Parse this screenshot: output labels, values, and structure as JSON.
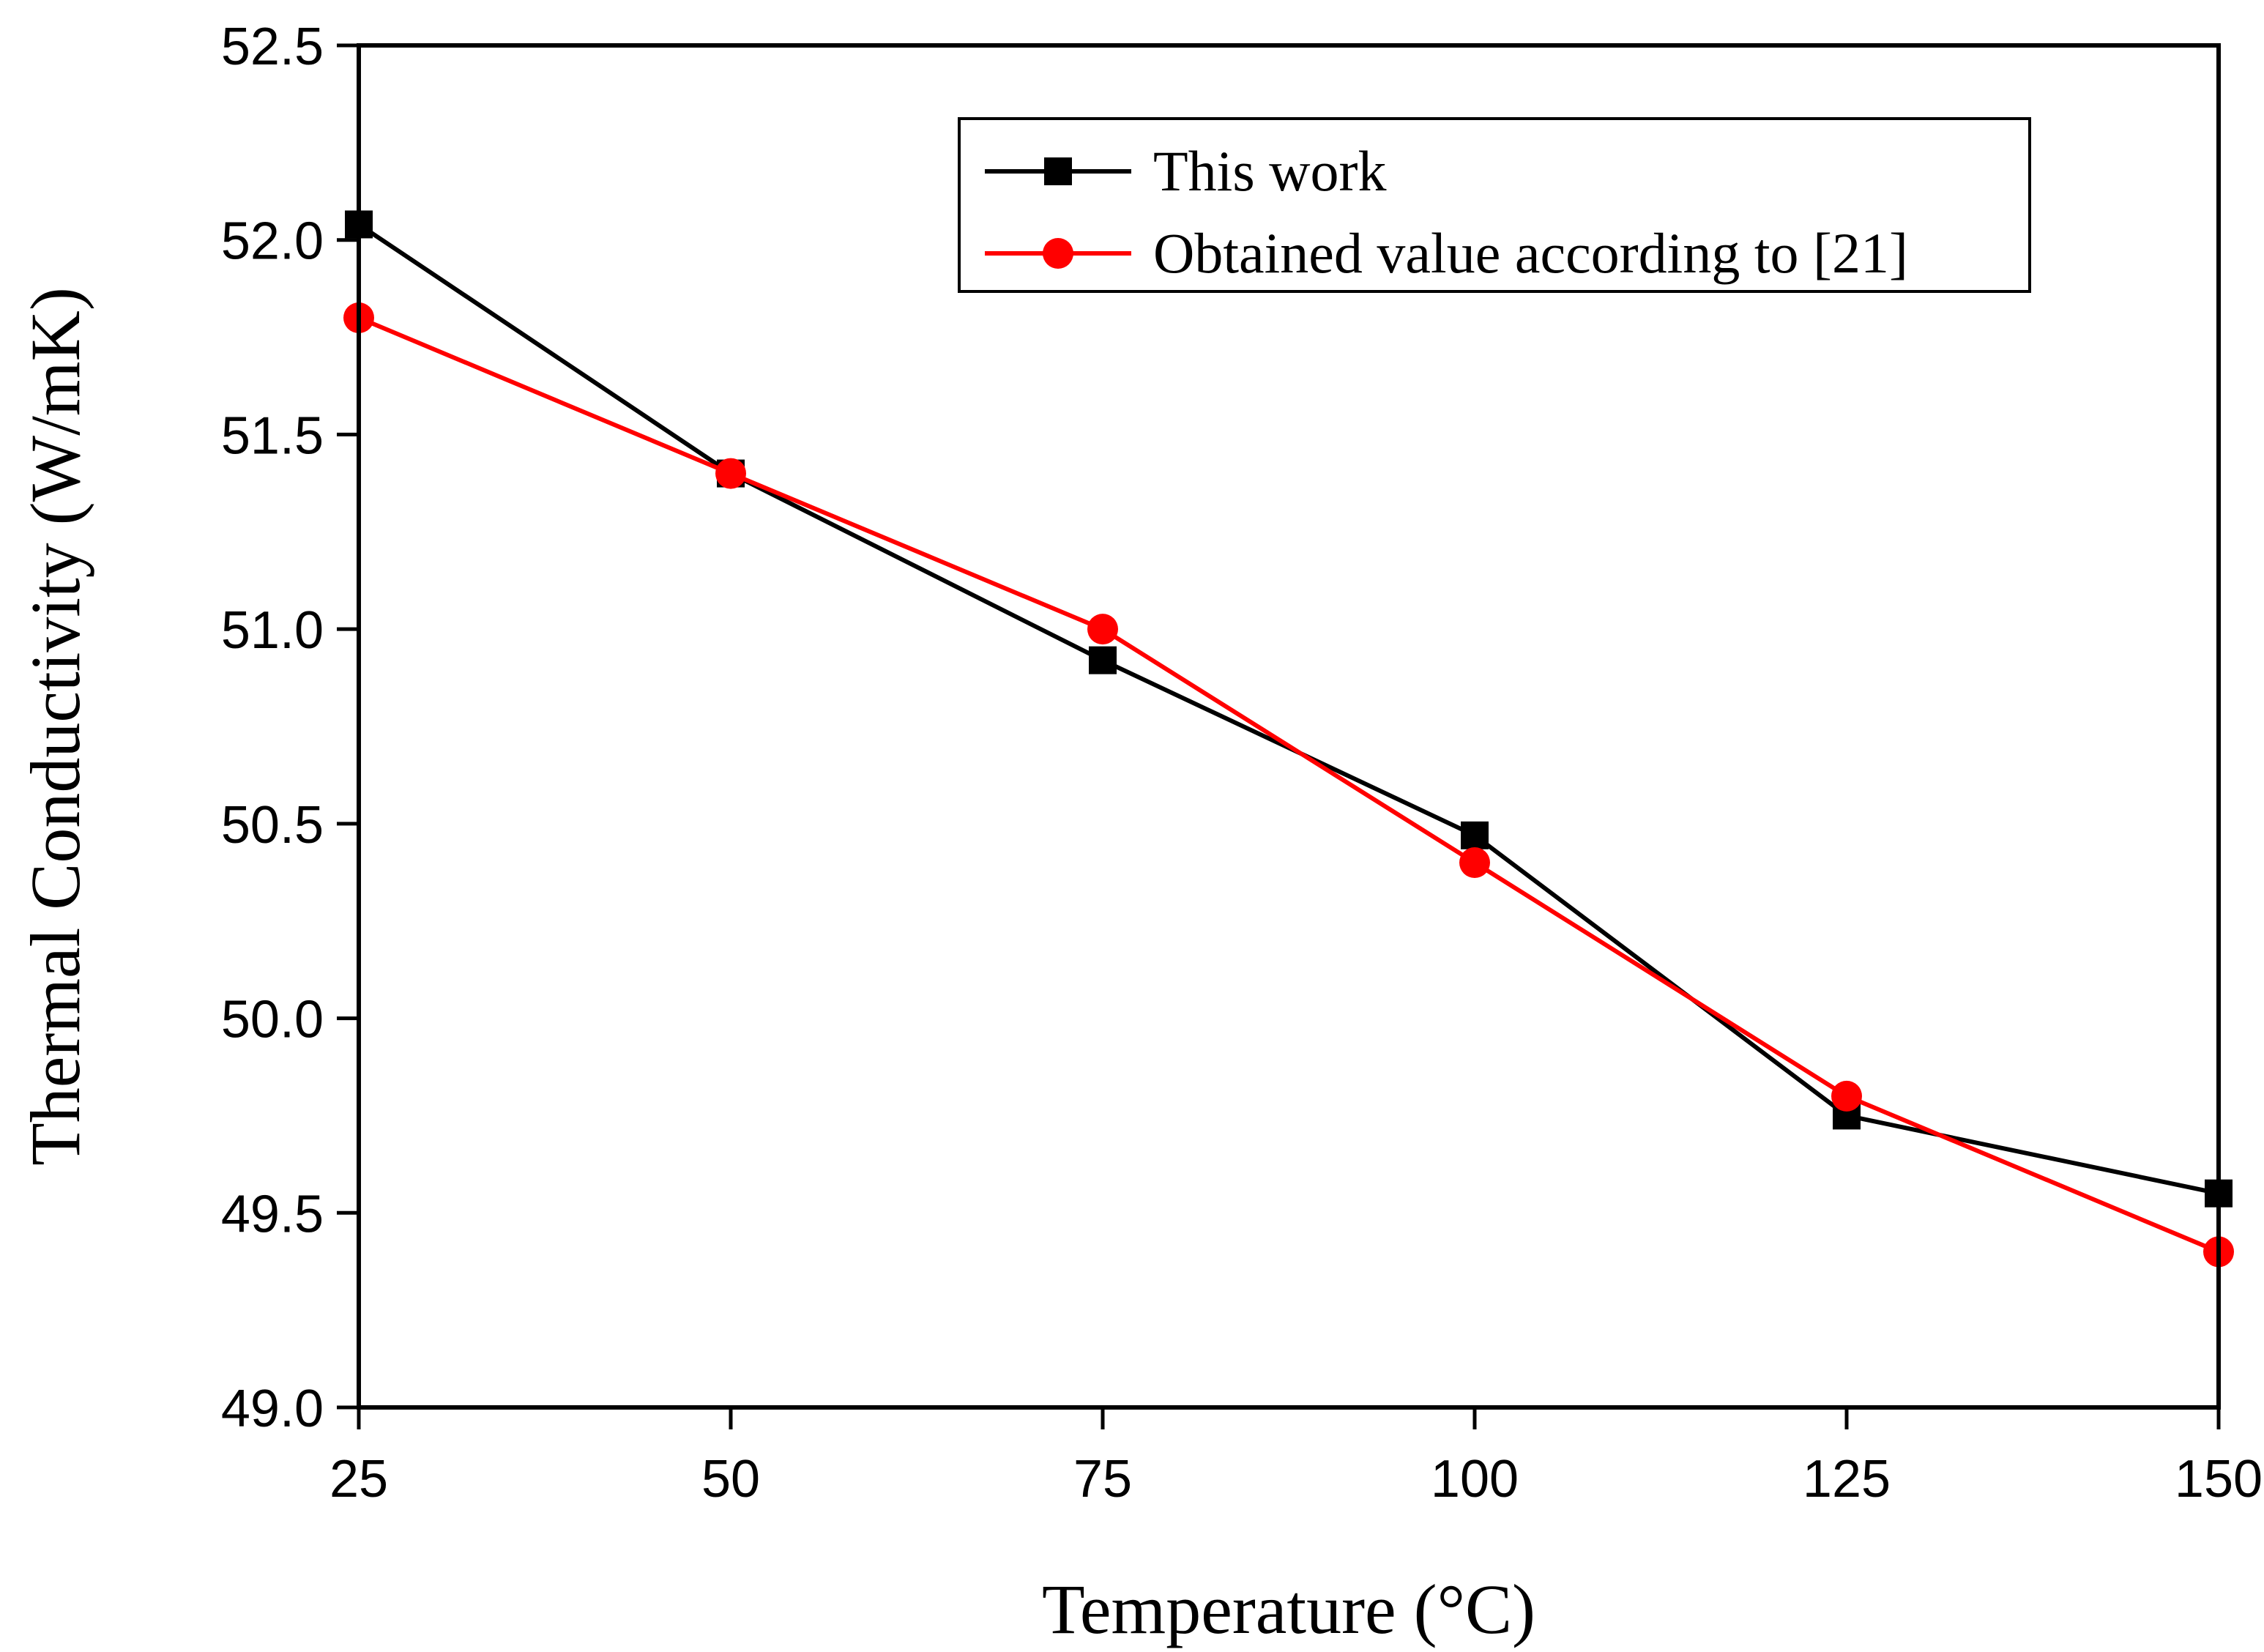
{
  "chart_data": {
    "type": "line",
    "title": "",
    "xlabel": "Temperature (°C)",
    "ylabel": "Thermal Conductivity (W/mK)",
    "xlim": [
      25,
      150
    ],
    "ylim": [
      49.0,
      52.5
    ],
    "x_ticks": [
      25,
      50,
      75,
      100,
      125,
      150
    ],
    "x_tick_labels": [
      "25",
      "50",
      "75",
      "100",
      "125",
      "150"
    ],
    "y_ticks": [
      49.0,
      49.5,
      50.0,
      50.5,
      51.0,
      51.5,
      52.0,
      52.5
    ],
    "y_tick_labels": [
      "49.0",
      "49.5",
      "50.0",
      "50.5",
      "51.0",
      "51.5",
      "52.0",
      "52.5"
    ],
    "grid": false,
    "legend_position": "top-right",
    "x": [
      25,
      50,
      75,
      100,
      125,
      150
    ],
    "series": [
      {
        "name": "This work",
        "color": "#000000",
        "marker": "square",
        "values": [
          52.04,
          51.4,
          50.92,
          50.47,
          49.75,
          49.55
        ]
      },
      {
        "name": "Obtained value according to [21]",
        "color": "#ff0000",
        "marker": "circle",
        "values": [
          51.8,
          51.4,
          51.0,
          50.4,
          49.8,
          49.4
        ]
      }
    ]
  }
}
